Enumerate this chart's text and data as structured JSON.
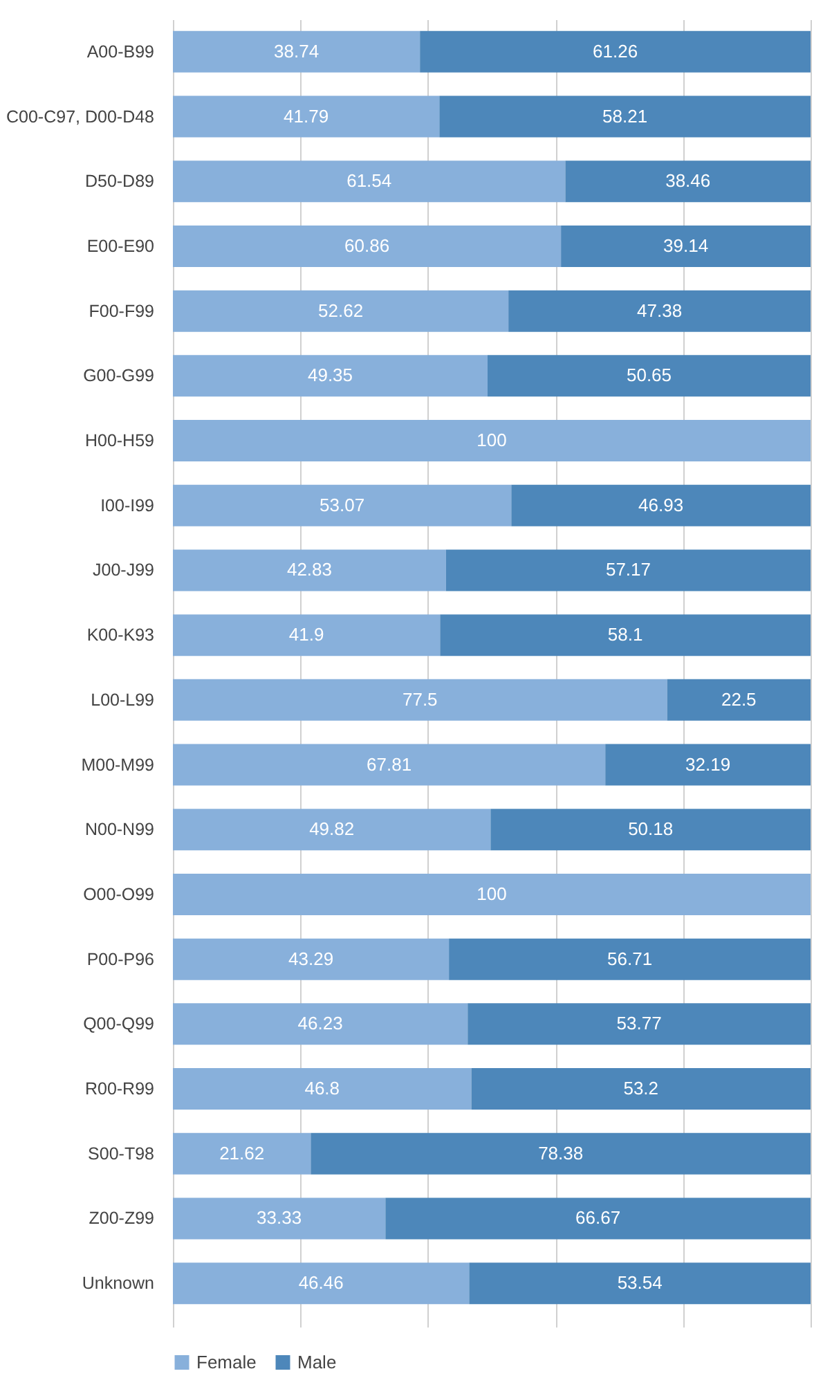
{
  "chart_data": {
    "type": "bar",
    "orientation": "horizontal",
    "stacked": true,
    "grid": "x",
    "legend": "bottom",
    "tick_labels": "y",
    "categories": [
      "A00-B99",
      "C00-C97, D00-D48",
      "D50-D89",
      "E00-E90",
      "F00-F99",
      "G00-G99",
      "H00-H59",
      "I00-I99",
      "J00-J99",
      "K00-K93",
      "L00-L99",
      "M00-M99",
      "N00-N99",
      "O00-O99",
      "P00-P96",
      "Q00-Q99",
      "R00-R99",
      "S00-T98",
      "Z00-Z99",
      "Unknown"
    ],
    "xlim": [
      0,
      100
    ],
    "xticks": [
      {
        "value": 0,
        "label": null
      },
      {
        "value": 20,
        "label": null
      },
      {
        "value": 40,
        "label": null
      },
      {
        "value": 60,
        "label": null
      },
      {
        "value": 80,
        "label": null
      },
      {
        "value": 100,
        "label": null
      }
    ],
    "series": [
      {
        "name": "Female",
        "color": "#88b0db",
        "values": [
          38.74,
          41.79,
          61.54,
          60.86,
          52.62,
          49.35,
          100,
          53.07,
          42.83,
          41.9,
          77.5,
          67.81,
          49.82,
          100,
          43.29,
          46.23,
          46.8,
          21.62,
          33.33,
          46.46
        ],
        "value_labels": [
          "38.74",
          "41.79",
          "61.54",
          "60.86",
          "52.62",
          "49.35",
          "100",
          "53.07",
          "42.83",
          "41.9",
          "77.5",
          "67.81",
          "49.82",
          "100",
          "43.29",
          "46.23",
          "46.8",
          "21.62",
          "33.33",
          "46.46"
        ]
      },
      {
        "name": "Male",
        "color": "#4d87ba",
        "values": [
          61.26,
          58.21,
          38.46,
          39.14,
          47.38,
          50.65,
          0,
          46.93,
          57.17,
          58.1,
          22.5,
          32.19,
          50.18,
          0,
          56.71,
          53.77,
          53.2,
          78.38,
          66.67,
          53.54
        ],
        "value_labels": [
          "61.26",
          "58.21",
          "38.46",
          "39.14",
          "47.38",
          "50.65",
          null,
          "46.93",
          "57.17",
          "58.1",
          "22.5",
          "32.19",
          "50.18",
          null,
          "56.71",
          "53.77",
          "53.2",
          "78.38",
          "66.67",
          "53.54"
        ]
      }
    ]
  }
}
